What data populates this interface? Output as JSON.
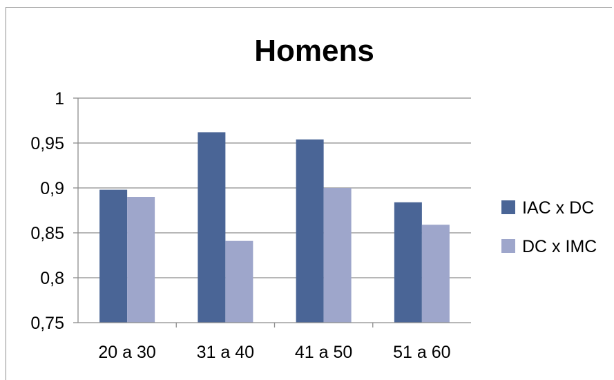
{
  "chart_data": {
    "type": "bar",
    "title": "Homens",
    "categories": [
      "20 a 30",
      "31 a 40",
      "41 a 50",
      "51 a 60"
    ],
    "series": [
      {
        "name": "IAC x DC",
        "color": "#4a6596",
        "values": [
          0.898,
          0.962,
          0.954,
          0.884
        ]
      },
      {
        "name": "DC x IMC",
        "color": "#9ea6cb",
        "values": [
          0.89,
          0.841,
          0.9,
          0.859
        ]
      }
    ],
    "ylim": [
      0.75,
      1
    ],
    "yticks": [
      "0,75",
      "0,8",
      "0,85",
      "0,9",
      "0,95",
      "1"
    ],
    "ytick_values": [
      0.75,
      0.8,
      0.85,
      0.9,
      0.95,
      1
    ],
    "grid": true,
    "legend": "right"
  }
}
